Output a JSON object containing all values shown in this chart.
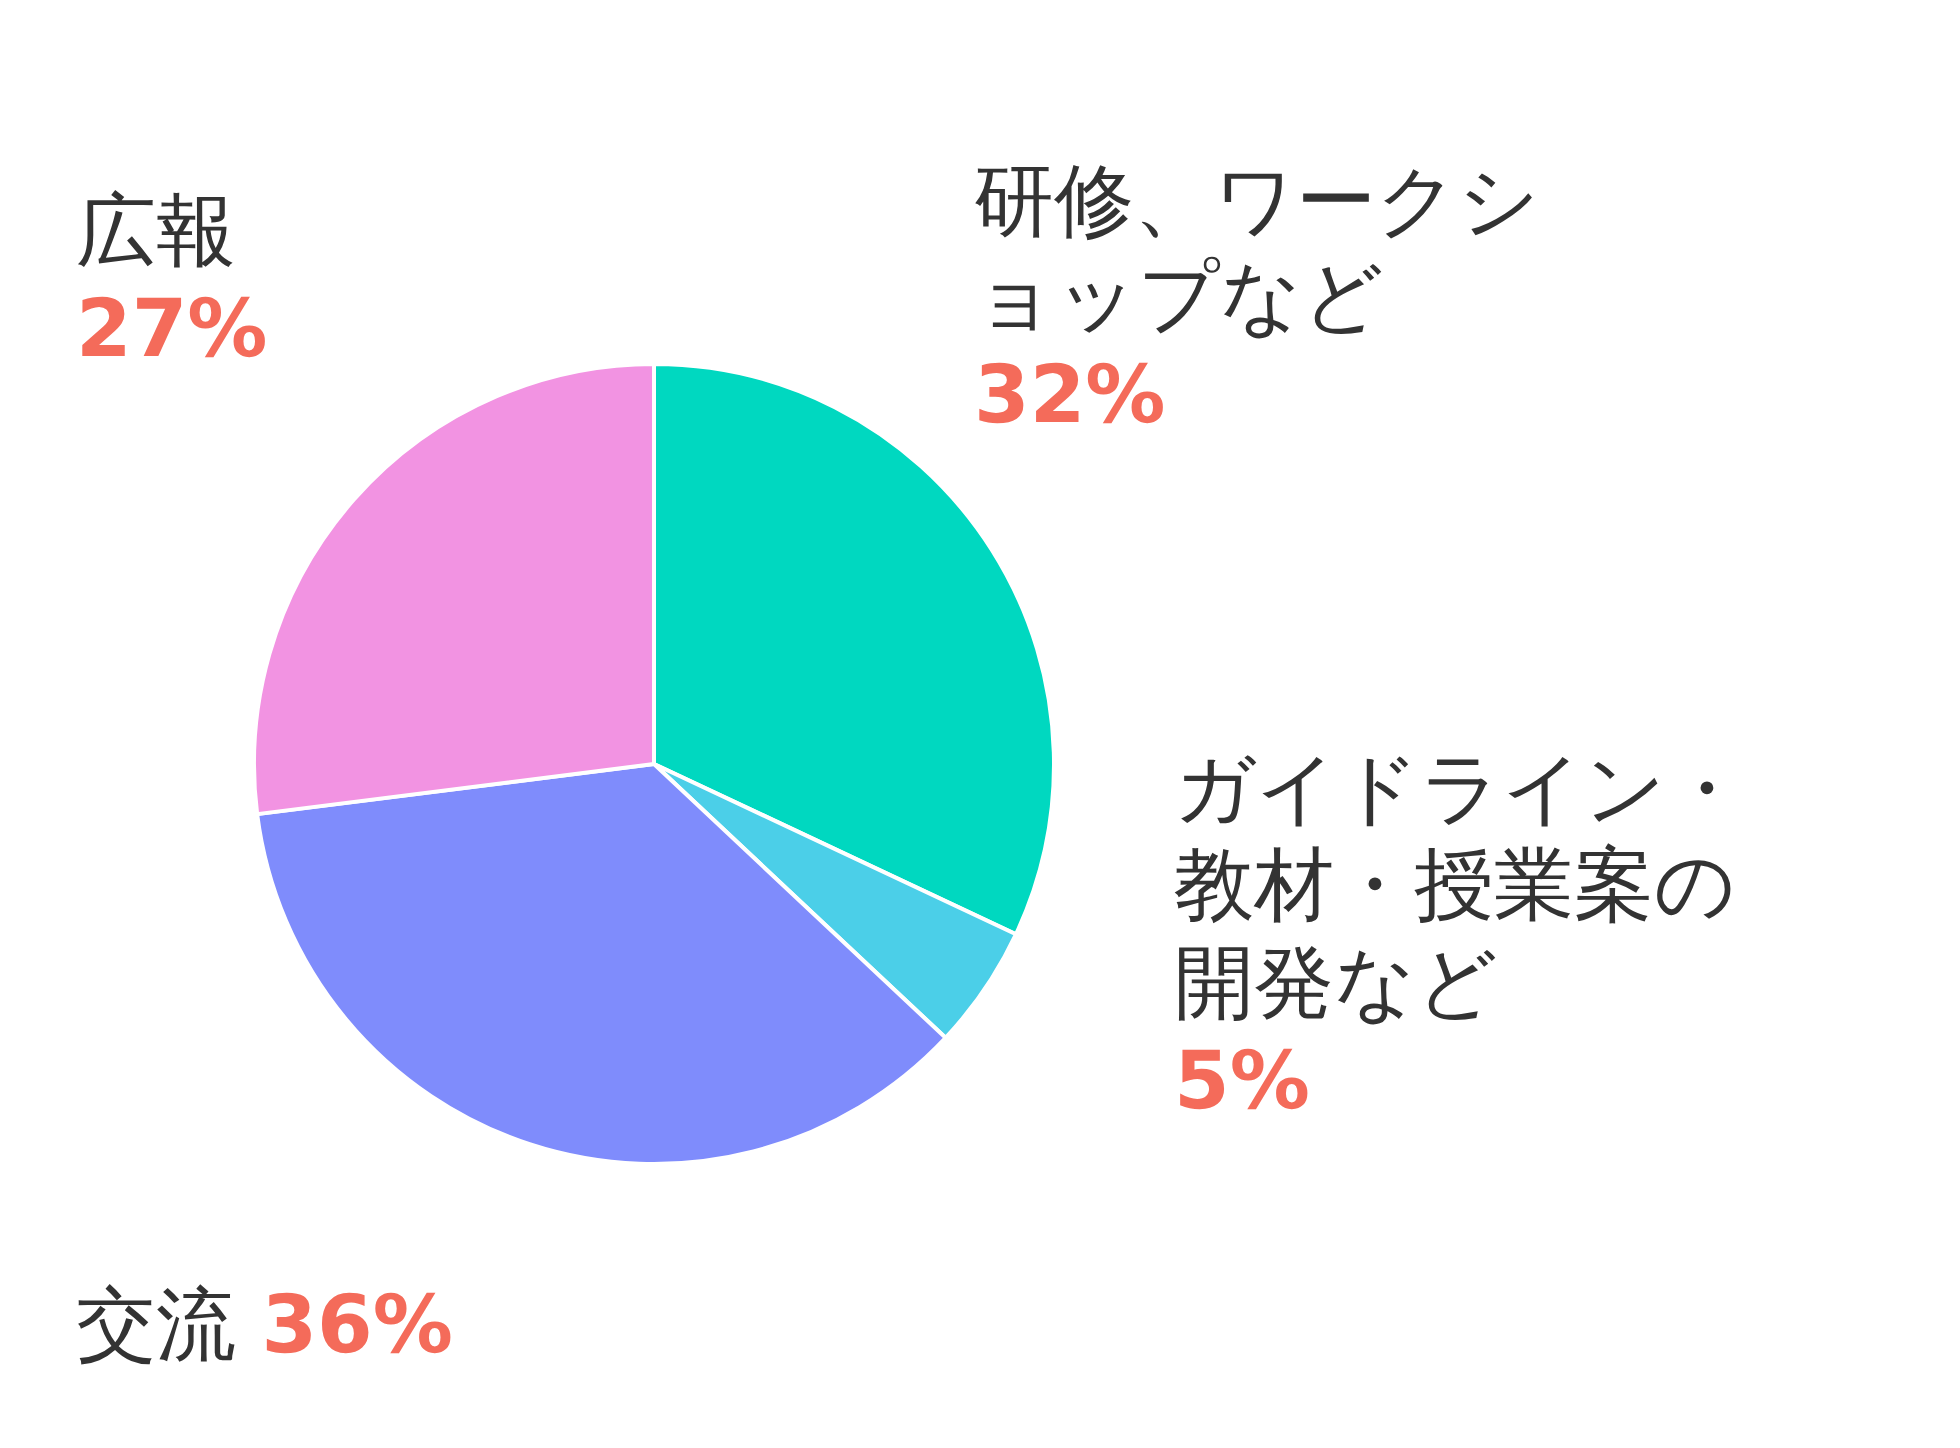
{
  "chart_data": {
    "type": "pie",
    "categories": [
      "研修、ワークショップなど",
      "ガイドライン・教材・授業案の開発など",
      "交流",
      "広報"
    ],
    "values": [
      32,
      5,
      36,
      27
    ],
    "colors": [
      "#00d8c0",
      "#4bcfe8",
      "#7f8cfc",
      "#f293e2"
    ],
    "value_labels": [
      "32%",
      "5%",
      "36%",
      "27%"
    ]
  }
}
